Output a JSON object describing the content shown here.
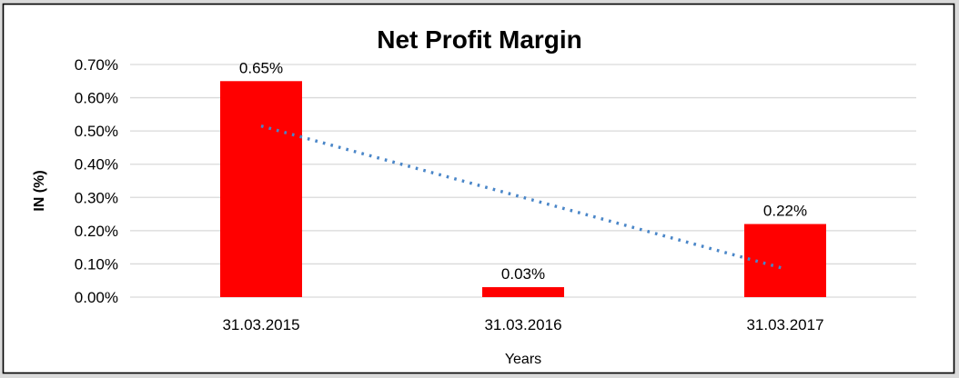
{
  "chart_data": {
    "type": "bar",
    "title": "Net Profit Margin",
    "xlabel": "Years",
    "ylabel": "IN (%)",
    "categories": [
      "31.03.2015",
      "31.03.2016",
      "31.03.2017"
    ],
    "values": [
      0.65,
      0.03,
      0.22
    ],
    "data_labels": [
      "0.65%",
      "0.03%",
      "0.22%"
    ],
    "ylim": [
      0,
      0.7
    ],
    "ytick_step": 0.1,
    "ytick_labels": [
      "0.00%",
      "0.10%",
      "0.20%",
      "0.30%",
      "0.40%",
      "0.50%",
      "0.60%",
      "0.70%"
    ],
    "grid": true,
    "legend_position": "none",
    "bar_color": "#ff0000",
    "trendline": {
      "kind": "linear",
      "style": "dotted",
      "color": "#4a86c8",
      "start_value_pct": 0.515,
      "end_value_pct": 0.085
    }
  },
  "colors": {
    "plot_background": "#ffffff",
    "outer_margin": "#dadada",
    "border": "#000000",
    "gridline": "#d9d9d9",
    "text": "#000000"
  }
}
